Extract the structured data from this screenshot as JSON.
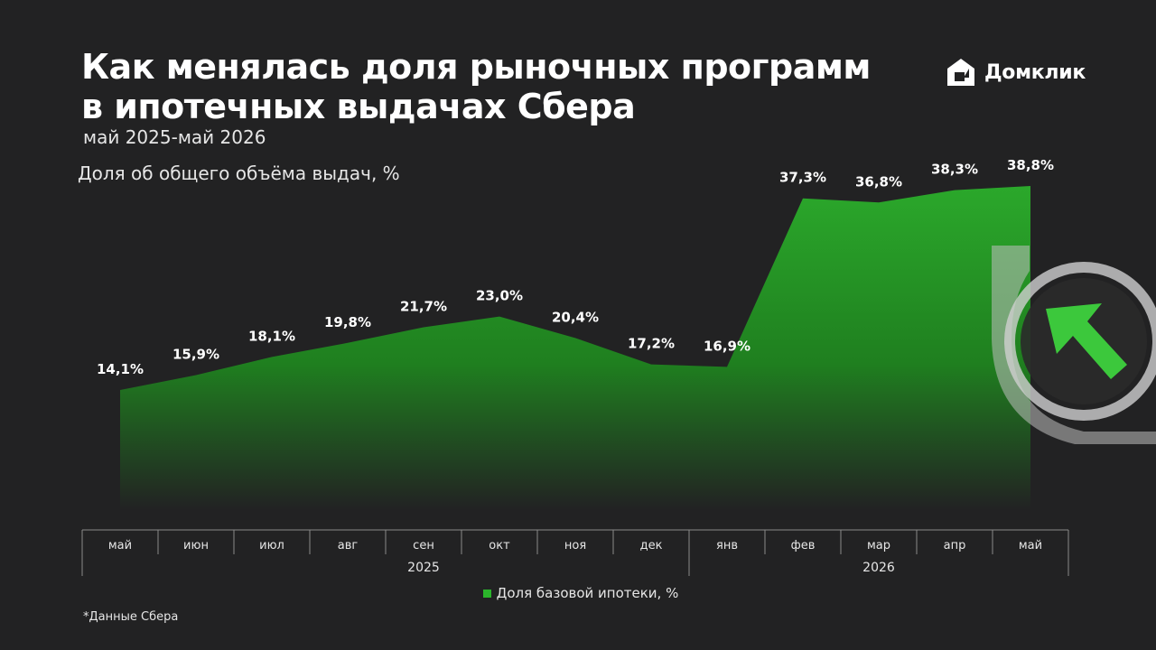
{
  "header": {
    "title": "Как менялась доля рыночных программ\nв ипотечных выдачах Сбера",
    "subtitle": "май 2025-май 2026",
    "brand": "Домклик"
  },
  "footnote": "*Данные Сбера",
  "chart_data": {
    "type": "area",
    "ylabel": "Доля об общего объёма выдач, %",
    "categories": [
      "май",
      "июн",
      "июл",
      "авг",
      "сен",
      "окт",
      "ноя",
      "дек",
      "янв",
      "фев",
      "мар",
      "апр",
      "май"
    ],
    "year_groups": [
      {
        "label": "2025",
        "from": 0,
        "to": 8
      },
      {
        "label": "2026",
        "from": 8,
        "to": 12
      }
    ],
    "series": [
      {
        "name": "Доля базовой ипотеки, %",
        "values": [
          14.1,
          15.9,
          18.1,
          19.8,
          21.7,
          23.0,
          20.4,
          17.2,
          16.9,
          37.3,
          36.8,
          38.3,
          38.8
        ],
        "labels": [
          "14,1%",
          "15,9%",
          "18,1%",
          "19,8%",
          "21,7%",
          "23,0%",
          "20,4%",
          "17,2%",
          "16,9%",
          "37,3%",
          "36,8%",
          "38,3%",
          "38,8%"
        ],
        "color": "#2bb52b"
      }
    ],
    "ylim": [
      0,
      40
    ],
    "legend": "bottom-center"
  }
}
